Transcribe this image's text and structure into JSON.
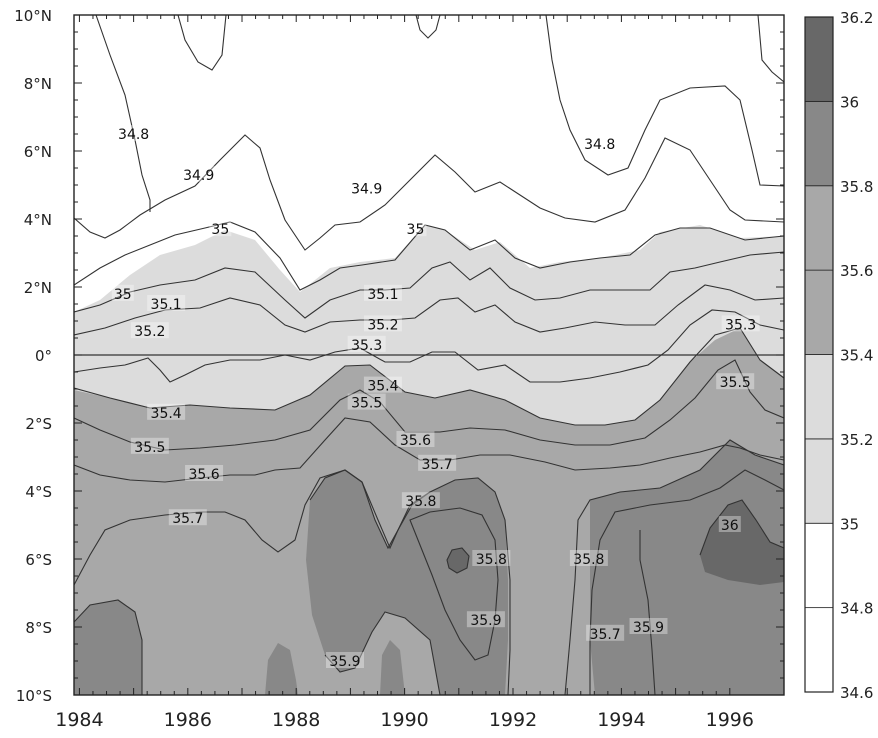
{
  "chart_data": {
    "type": "heatmap",
    "subtype": "filled-contour",
    "title": "",
    "xlabel": "",
    "ylabel": "",
    "x_ticks": [
      "1984",
      "1986",
      "1988",
      "1990",
      "1992",
      "1994",
      "1996"
    ],
    "x_tick_values": [
      1984,
      1986,
      1988,
      1990,
      1992,
      1994,
      1996
    ],
    "xlim": [
      1983.9,
      1997.0
    ],
    "y_ticks": [
      "10°N",
      "8°N",
      "6°N",
      "4°N",
      "2°N",
      "0°",
      "2°S",
      "4°S",
      "6°S",
      "8°S",
      "10°S"
    ],
    "y_tick_values": [
      10,
      8,
      6,
      4,
      2,
      0,
      -2,
      -4,
      -6,
      -8,
      -10
    ],
    "ylim": [
      -10,
      10
    ],
    "colorbar": {
      "levels": [
        "34.6",
        "34.8",
        "35",
        "35.2",
        "35.4",
        "35.6",
        "35.8",
        "36",
        "36.2"
      ],
      "level_values": [
        34.6,
        34.8,
        35.0,
        35.2,
        35.4,
        35.6,
        35.8,
        36.0,
        36.2
      ],
      "band_colors": [
        "#ffffff",
        "#ffffff",
        "#dcdcdc",
        "#dcdcdc",
        "#a8a8a8",
        "#a8a8a8",
        "#888888",
        "#686868"
      ]
    },
    "fill_colors": {
      "low": "#ffffff",
      "mid": "#dcdcdc",
      "high": "#a8a8a8",
      "higher": "#888888",
      "highest": "#686868"
    },
    "zero_line": true,
    "contour_labels": [
      {
        "text": "34.8",
        "x": 1985.0,
        "y": 6.5
      },
      {
        "text": "34.9",
        "x": 1986.2,
        "y": 5.3
      },
      {
        "text": "34.9",
        "x": 1989.3,
        "y": 4.9
      },
      {
        "text": "34.8",
        "x": 1993.6,
        "y": 6.2
      },
      {
        "text": "35",
        "x": 1986.6,
        "y": 3.7
      },
      {
        "text": "35",
        "x": 1990.2,
        "y": 3.7
      },
      {
        "text": "35",
        "x": 1984.8,
        "y": 1.8
      },
      {
        "text": "35.1",
        "x": 1985.6,
        "y": 1.5
      },
      {
        "text": "35.1",
        "x": 1989.6,
        "y": 1.8
      },
      {
        "text": "35.2",
        "x": 1985.3,
        "y": 0.7
      },
      {
        "text": "35.2",
        "x": 1989.6,
        "y": 0.9
      },
      {
        "text": "35.3",
        "x": 1989.3,
        "y": 0.3
      },
      {
        "text": "35.3",
        "x": 1996.2,
        "y": 0.9
      },
      {
        "text": "35.4",
        "x": 1989.6,
        "y": -0.9
      },
      {
        "text": "35.4",
        "x": 1985.6,
        "y": -1.7
      },
      {
        "text": "35.5",
        "x": 1985.3,
        "y": -2.7
      },
      {
        "text": "35.5",
        "x": 1989.3,
        "y": -1.4
      },
      {
        "text": "35.5",
        "x": 1996.1,
        "y": -0.8
      },
      {
        "text": "35.6",
        "x": 1986.3,
        "y": -3.5
      },
      {
        "text": "35.6",
        "x": 1990.2,
        "y": -2.5
      },
      {
        "text": "35.7",
        "x": 1986.0,
        "y": -4.8
      },
      {
        "text": "35.7",
        "x": 1990.6,
        "y": -3.2
      },
      {
        "text": "35.7",
        "x": 1993.7,
        "y": -8.2
      },
      {
        "text": "35.8",
        "x": 1990.3,
        "y": -4.3
      },
      {
        "text": "35.8",
        "x": 1991.6,
        "y": -6.0
      },
      {
        "text": "35.8",
        "x": 1993.4,
        "y": -6.0
      },
      {
        "text": "35.9",
        "x": 1991.5,
        "y": -7.8
      },
      {
        "text": "35.9",
        "x": 1988.9,
        "y": -9.0
      },
      {
        "text": "35.9",
        "x": 1994.5,
        "y": -8.0
      },
      {
        "text": "36",
        "x": 1996.0,
        "y": -5.0
      }
    ]
  }
}
